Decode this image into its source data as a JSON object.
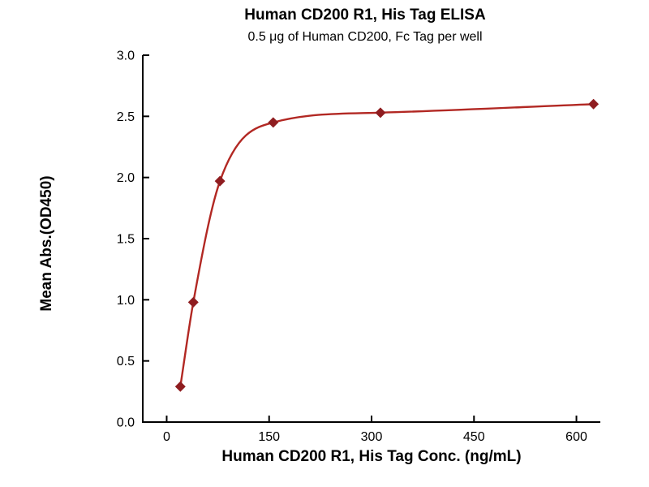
{
  "chart_data": {
    "type": "scatter",
    "title": "Human CD200 R1, His Tag ELISA",
    "subtitle": "0.5 μg of Human CD200, Fc Tag per well",
    "xlabel": "Human CD200 R1, His Tag Conc. (ng/mL)",
    "ylabel": "Mean Abs.(OD450)",
    "x": [
      20,
      39,
      78,
      156,
      313,
      625
    ],
    "y": [
      0.29,
      0.98,
      1.97,
      2.45,
      2.53,
      2.6
    ],
    "xlim": [
      -35,
      635
    ],
    "ylim": [
      0,
      3
    ],
    "x_ticks": [
      {
        "value": 0,
        "label": "0"
      },
      {
        "value": 150,
        "label": "150"
      },
      {
        "value": 300,
        "label": "300"
      },
      {
        "value": 450,
        "label": "450"
      },
      {
        "value": 600,
        "label": "600"
      }
    ],
    "y_ticks": [
      {
        "value": 0.0,
        "label": "0.0"
      },
      {
        "value": 0.5,
        "label": "0.5"
      },
      {
        "value": 1.0,
        "label": "1.0"
      },
      {
        "value": 1.5,
        "label": "1.5"
      },
      {
        "value": 2.0,
        "label": "2.0"
      },
      {
        "value": 2.5,
        "label": "2.5"
      },
      {
        "value": 3.0,
        "label": "3.0"
      }
    ],
    "marker": "diamond",
    "grid": false,
    "legend": "none",
    "line_color": "#b22823",
    "marker_color": "#8f1d20",
    "axis_color": "#000000",
    "text_color": "#000000"
  }
}
